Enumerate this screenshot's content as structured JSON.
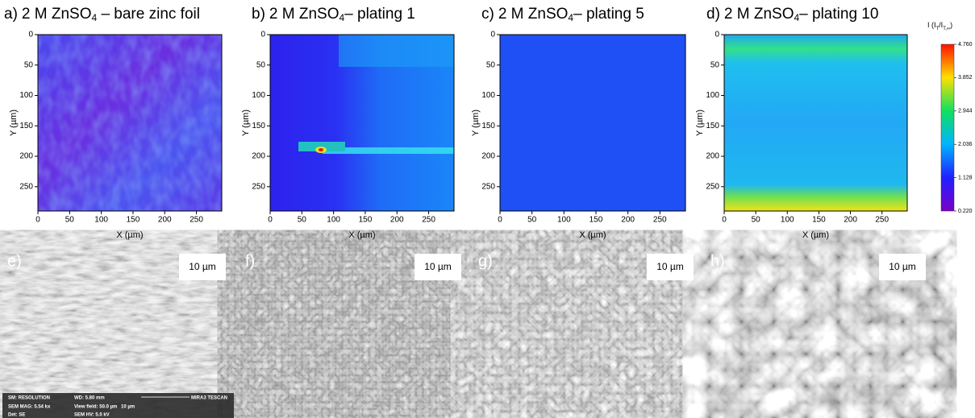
{
  "maps": [
    {
      "label": "a)",
      "title_pre": "2 M ZnSO",
      "title_sub": "4",
      "title_post": " – bare zinc foil"
    },
    {
      "label": "b)",
      "title_pre": "2 M ZnSO",
      "title_sub": "4",
      "title_post": "– plating 1"
    },
    {
      "label": "c)",
      "title_pre": "2 M ZnSO",
      "title_sub": "4",
      "title_post": "– plating 5"
    },
    {
      "label": "d)",
      "title_pre": "2 M ZnSO",
      "title_sub": "4",
      "title_post": "– plating 10"
    }
  ],
  "xlabel": "X (µm)",
  "ylabel": "Y (µm)",
  "xlim": [
    0,
    290
  ],
  "ylim": [
    0,
    290
  ],
  "xticks": [
    0,
    50,
    100,
    150,
    200,
    250
  ],
  "yticks": [
    0,
    50,
    100,
    150,
    200,
    250
  ],
  "colorbar": {
    "label_parts": [
      "I (I",
      "T",
      "/I",
      "T,∞",
      ")"
    ],
    "clim": [
      0.22,
      4.76
    ],
    "ticks": [
      {
        "value": 0.22,
        "label": "0.220"
      },
      {
        "value": 1.128,
        "label": "1.128"
      },
      {
        "value": 2.036,
        "label": "2.036"
      },
      {
        "value": 2.944,
        "label": "2.944"
      },
      {
        "value": 3.852,
        "label": "3.852"
      },
      {
        "value": 4.76,
        "label": "4.760"
      }
    ]
  },
  "sem": [
    {
      "label": "e)",
      "scale": "10 µm"
    },
    {
      "label": "f)",
      "scale": "10 µm"
    },
    {
      "label": "g)",
      "scale": "10 µm"
    },
    {
      "label": "h)",
      "scale": "10 µm"
    }
  ],
  "sem_info": [
    "SM: RESOLUTION",
    "WD: 5.80 mm",
    "MIRA3 TESCAN",
    "SEM MAG: 5.54 kx",
    "View field: 50.0 µm",
    "10 µm",
    "Det: SE",
    "SEM HV: 5.0 kV"
  ]
}
